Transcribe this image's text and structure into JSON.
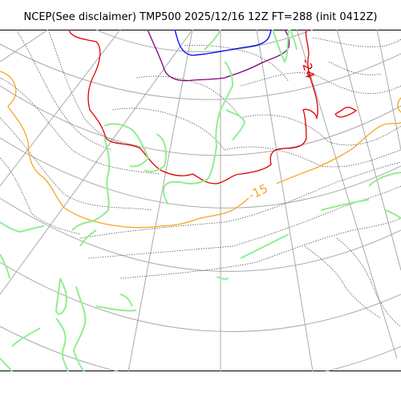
{
  "title": "NCEP(See disclaimer) TMP500 2025/12/16 12Z FT=288 (init 0412Z)",
  "contour_labels": {
    "red_label": "-24",
    "orange_label": "-15"
  },
  "colors": {
    "coastline": "#90ee90",
    "gridline": "#aaaaaa",
    "blue_isotherm": "#0000ff",
    "purple_isotherm": "#800080",
    "red_isotherm": "#dd0000",
    "orange_isotherm": "#f5a623",
    "thin_contour": "#555555"
  }
}
